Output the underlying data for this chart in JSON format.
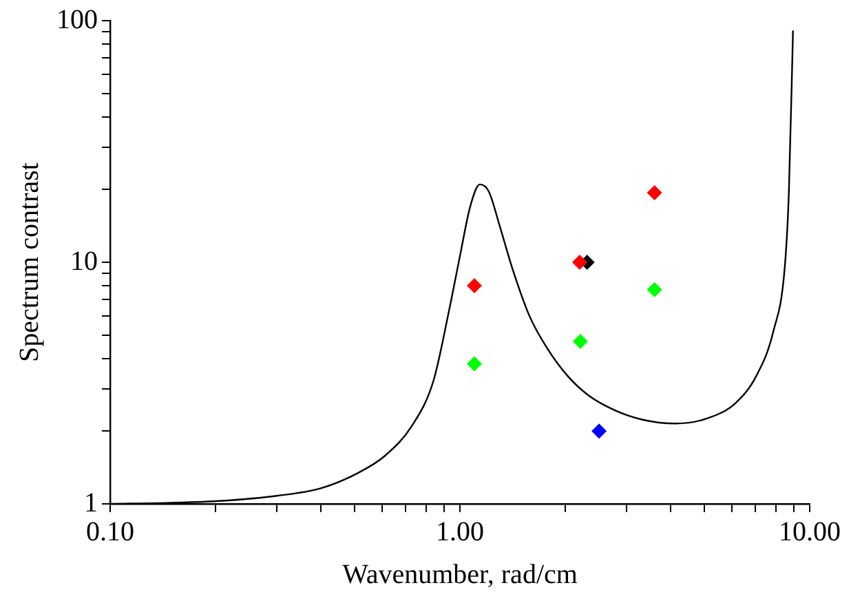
{
  "chart_data": {
    "type": "scatter",
    "xlabel": "Wavenumber, rad/cm",
    "ylabel": "Spectrum contrast",
    "log": "xy",
    "grid": false,
    "legend": false,
    "marker": "diamond",
    "xlim": [
      0.1,
      10
    ],
    "ylim": [
      1,
      100
    ],
    "xticks": [
      {
        "value": 0.1,
        "label": "0.10"
      },
      {
        "value": 0.2,
        "label": null
      },
      {
        "value": 0.3,
        "label": null
      },
      {
        "value": 0.4,
        "label": null
      },
      {
        "value": 0.5,
        "label": null
      },
      {
        "value": 0.6,
        "label": null
      },
      {
        "value": 0.7,
        "label": null
      },
      {
        "value": 0.8,
        "label": null
      },
      {
        "value": 0.9,
        "label": null
      },
      {
        "value": 1,
        "label": "1.00"
      },
      {
        "value": 2,
        "label": null
      },
      {
        "value": 3,
        "label": null
      },
      {
        "value": 4,
        "label": null
      },
      {
        "value": 5,
        "label": null
      },
      {
        "value": 6,
        "label": null
      },
      {
        "value": 7,
        "label": null
      },
      {
        "value": 8,
        "label": null
      },
      {
        "value": 9,
        "label": null
      },
      {
        "value": 10,
        "label": "10.00"
      }
    ],
    "yticks": [
      1,
      {
        "value": 2,
        "label": null
      },
      {
        "value": 3,
        "label": null
      },
      {
        "value": 4,
        "label": null
      },
      {
        "value": 5,
        "label": null
      },
      {
        "value": 6,
        "label": null
      },
      {
        "value": 7,
        "label": null
      },
      {
        "value": 8,
        "label": null
      },
      {
        "value": 9,
        "label": null
      },
      10,
      {
        "value": 20,
        "label": null
      },
      {
        "value": 30,
        "label": null
      },
      {
        "value": 40,
        "label": null
      },
      {
        "value": 50,
        "label": null
      },
      {
        "value": 60,
        "label": null
      },
      {
        "value": 70,
        "label": null
      },
      {
        "value": 80,
        "label": null
      },
      {
        "value": 90,
        "label": null
      },
      100
    ],
    "series": [
      {
        "type": "line",
        "marker": "none",
        "color": "#000000",
        "x": [
          0.1,
          0.148,
          0.21,
          0.3,
          0.4,
          0.51,
          0.61,
          0.73,
          0.84,
          0.93,
          1.0,
          1.07,
          1.14,
          1.21,
          1.3,
          1.42,
          1.58,
          1.76,
          2.03,
          2.34,
          2.79,
          3.33,
          4.13,
          5.1,
          6.13,
          7.04,
          7.88,
          8.49,
          8.72,
          8.96
        ],
        "values": [
          1.0,
          1.01,
          1.03,
          1.08,
          1.16,
          1.34,
          1.58,
          2.11,
          3.23,
          6.27,
          10.6,
          17.0,
          21.0,
          19.6,
          14.1,
          9.2,
          6.0,
          4.5,
          3.39,
          2.8,
          2.43,
          2.23,
          2.15,
          2.26,
          2.61,
          3.39,
          5.2,
          9.6,
          19.6,
          91
        ]
      },
      {
        "color": "#ff0000",
        "x": [
          1.1,
          2.2,
          3.6
        ],
        "values": [
          8.0,
          10,
          19.4
        ]
      },
      {
        "color": "#00ff00",
        "x": [
          1.1,
          2.21,
          3.6
        ],
        "values": [
          3.8,
          4.7,
          7.7
        ]
      },
      {
        "color": "#000000",
        "x": [
          2.31
        ],
        "values": [
          10
        ]
      },
      {
        "color": "#0000ff",
        "x": [
          2.5
        ],
        "values": [
          2.0
        ]
      }
    ]
  }
}
